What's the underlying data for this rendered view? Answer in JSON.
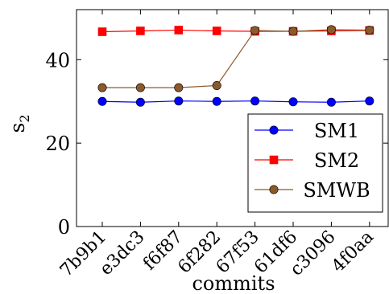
{
  "chart_data": {
    "type": "line",
    "title": "",
    "xlabel": "commits",
    "ylabel": "s",
    "ylabel_subscript": "2",
    "categories": [
      "7b9b1",
      "e3dc3",
      "f6f87",
      "6f282",
      "67f53",
      "61df6",
      "c3096",
      "4f0aa"
    ],
    "ylim": [
      0,
      52
    ],
    "yticks": [
      0,
      20,
      40
    ],
    "grid": false,
    "legend_position": "right",
    "series": [
      {
        "name": "SM1",
        "color": "#0000ff",
        "marker": "circle",
        "values": [
          30.0,
          29.8,
          30.1,
          30.0,
          30.1,
          29.9,
          29.8,
          30.1
        ]
      },
      {
        "name": "SM2",
        "color": "#ff0000",
        "marker": "square",
        "values": [
          46.7,
          46.9,
          47.1,
          46.9,
          46.8,
          46.8,
          46.9,
          47.0
        ]
      },
      {
        "name": "SMWB",
        "color": "#8b5a2b",
        "marker": "circle",
        "values": [
          33.3,
          33.3,
          33.3,
          33.8,
          47.0,
          46.8,
          47.2,
          47.1
        ]
      }
    ]
  }
}
